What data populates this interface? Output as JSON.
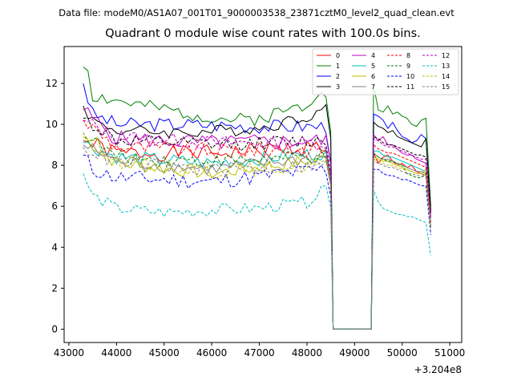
{
  "suptitle": "Data file: modeM0/AS1A07_001T01_9000003538_23871cztM0_level2_quad_clean.evt",
  "chart_data": {
    "type": "line",
    "title": "Quadrant 0 module wise count rates with 100.0s bins.",
    "xlabel": "",
    "ylabel": "",
    "x_offset_label": "+3.204e8",
    "xlim": [
      42900,
      51250
    ],
    "ylim": [
      -0.65,
      13.8
    ],
    "xticks": [
      43000,
      44000,
      45000,
      46000,
      47000,
      48000,
      49000,
      50000,
      51000
    ],
    "yticks": [
      0,
      2,
      4,
      6,
      8,
      10,
      12
    ],
    "grid": false,
    "legend_position": "top-right",
    "x_start": 43300,
    "bin_width": 100,
    "gap_start_bin": 12,
    "note": "x values are x_start + i*bin_width (offset +3.204e8); data gap (rate 0) between 48500 and 49400",
    "series": [
      {
        "name": "0",
        "color": "#ff0000",
        "dash": "solid",
        "anchors": [
          [
            43300,
            9.2
          ],
          [
            44000,
            8.6
          ],
          [
            46000,
            8.6
          ],
          [
            48300,
            8.9
          ]
        ],
        "post": [
          8.6,
          8.1,
          8.4,
          8.5,
          8.2,
          8.0,
          8.1,
          7.9,
          8.0,
          7.7,
          7.6,
          7.5,
          5.0
        ],
        "amp": 0.4,
        "seed": 1
      },
      {
        "name": "1",
        "color": "#008000",
        "dash": "solid",
        "anchors": [
          [
            43300,
            12.8
          ],
          [
            43400,
            12.7
          ],
          [
            43500,
            11.4
          ],
          [
            44500,
            10.9
          ],
          [
            45000,
            10.7
          ],
          [
            46500,
            10.2
          ],
          [
            47000,
            10.3
          ],
          [
            48000,
            11.0
          ],
          [
            48300,
            11.9
          ],
          [
            48400,
            11.6
          ]
        ],
        "post": [
          11.9,
          10.7,
          10.6,
          10.9,
          10.5,
          10.6,
          10.4,
          10.3,
          10.0,
          9.9,
          10.2,
          10.3,
          6.0
        ],
        "amp": 0.35,
        "seed": 2
      },
      {
        "name": "2",
        "color": "#0000ff",
        "dash": "solid",
        "anchors": [
          [
            43300,
            12.0
          ],
          [
            43500,
            10.5
          ],
          [
            44000,
            10.0
          ],
          [
            45500,
            10.0
          ],
          [
            47000,
            9.9
          ],
          [
            48300,
            9.9
          ]
        ],
        "post": [
          10.5,
          10.4,
          10.2,
          9.8,
          10.1,
          9.7,
          9.4,
          9.3,
          9.1,
          9.2,
          9.5,
          9.3,
          5.7
        ],
        "amp": 0.35,
        "seed": 3
      },
      {
        "name": "3",
        "color": "#000000",
        "dash": "solid",
        "anchors": [
          [
            43300,
            10.9
          ],
          [
            43500,
            10.2
          ],
          [
            44000,
            9.7
          ],
          [
            45500,
            9.6
          ],
          [
            47000,
            9.8
          ],
          [
            48000,
            10.4
          ],
          [
            48300,
            10.7
          ]
        ],
        "post": [
          10.1,
          9.9,
          9.8,
          9.6,
          9.7,
          9.4,
          9.3,
          9.2,
          9.1,
          9.0,
          8.9,
          9.3,
          5.8
        ],
        "amp": 0.3,
        "seed": 4
      },
      {
        "name": "4",
        "color": "#bf00bf",
        "dash": "solid",
        "anchors": [
          [
            43300,
            10.7
          ],
          [
            44000,
            9.3
          ],
          [
            46000,
            9.1
          ],
          [
            48300,
            9.2
          ]
        ],
        "post": [
          9.5,
          9.2,
          9.4,
          9.0,
          9.0,
          8.8,
          8.6,
          8.5,
          8.5,
          8.3,
          8.2,
          8.1,
          5.5
        ],
        "amp": 0.4,
        "seed": 5
      },
      {
        "name": "5",
        "color": "#00bfbf",
        "dash": "solid",
        "anchors": [
          [
            43300,
            9.1
          ],
          [
            44000,
            8.4
          ],
          [
            46000,
            8.1
          ],
          [
            48300,
            8.6
          ]
        ],
        "post": [
          8.7,
          8.7,
          8.5,
          8.4,
          8.4,
          8.3,
          8.2,
          8.1,
          8.0,
          7.9,
          7.8,
          7.7,
          5.2
        ],
        "amp": 0.35,
        "seed": 6
      },
      {
        "name": "6",
        "color": "#bfbf00",
        "dash": "solid",
        "anchors": [
          [
            43300,
            9.4
          ],
          [
            44000,
            8.1
          ],
          [
            46000,
            7.6
          ],
          [
            48300,
            8.3
          ]
        ],
        "post": [
          8.4,
          8.3,
          8.2,
          8.2,
          8.1,
          8.0,
          7.9,
          7.8,
          7.7,
          7.6,
          7.6,
          7.8,
          5.0
        ],
        "amp": 0.35,
        "seed": 7
      },
      {
        "name": "7",
        "color": "#808080",
        "dash": "solid",
        "anchors": [
          [
            43300,
            9.0
          ],
          [
            44000,
            8.2
          ],
          [
            46000,
            7.8
          ],
          [
            48300,
            8.4
          ]
        ],
        "post": [
          8.6,
          8.4,
          8.3,
          8.3,
          8.2,
          8.1,
          8.0,
          7.9,
          7.8,
          7.7,
          7.7,
          7.6,
          5.0
        ],
        "amp": 0.35,
        "seed": 8
      },
      {
        "name": "8",
        "color": "#ff0000",
        "dash": "dashed",
        "anchors": [
          [
            43300,
            10.2
          ],
          [
            44000,
            8.9
          ],
          [
            46000,
            8.7
          ],
          [
            48300,
            8.8
          ]
        ],
        "post": [
          9.0,
          8.8,
          8.7,
          8.6,
          8.6,
          8.5,
          8.4,
          8.3,
          8.2,
          8.1,
          8.0,
          7.9,
          5.2
        ],
        "amp": 0.4,
        "seed": 9
      },
      {
        "name": "9",
        "color": "#008000",
        "dash": "dashed",
        "anchors": [
          [
            43300,
            9.6
          ],
          [
            44000,
            8.4
          ],
          [
            46000,
            8.2
          ],
          [
            48300,
            8.4
          ]
        ],
        "post": [
          8.6,
          8.4,
          8.3,
          8.2,
          8.2,
          8.1,
          8.0,
          7.6,
          7.5,
          7.4,
          7.4,
          7.6,
          5.0
        ],
        "amp": 0.35,
        "seed": 10
      },
      {
        "name": "10",
        "color": "#0000ff",
        "dash": "dashed",
        "anchors": [
          [
            43300,
            8.5
          ],
          [
            43500,
            7.8
          ],
          [
            44000,
            7.4
          ],
          [
            46000,
            7.2
          ],
          [
            48300,
            7.8
          ]
        ],
        "post": [
          7.8,
          7.8,
          7.6,
          7.5,
          7.5,
          7.4,
          7.3,
          7.3,
          7.2,
          7.1,
          7.0,
          7.0,
          4.6
        ],
        "amp": 0.4,
        "seed": 11
      },
      {
        "name": "11",
        "color": "#000000",
        "dash": "dashed",
        "anchors": [
          [
            43300,
            10.3
          ],
          [
            44000,
            9.2
          ],
          [
            46000,
            9.0
          ],
          [
            48300,
            9.2
          ]
        ],
        "post": [
          9.4,
          9.3,
          9.1,
          9.0,
          9.0,
          8.9,
          8.8,
          8.7,
          8.6,
          8.5,
          8.5,
          8.4,
          5.6
        ],
        "amp": 0.35,
        "seed": 12
      },
      {
        "name": "12",
        "color": "#bf00bf",
        "dash": "dashed",
        "anchors": [
          [
            43300,
            10.2
          ],
          [
            44000,
            9.4
          ],
          [
            46000,
            9.1
          ],
          [
            48300,
            9.1
          ]
        ],
        "post": [
          9.3,
          9.2,
          9.0,
          8.9,
          8.9,
          8.8,
          8.7,
          8.6,
          8.5,
          8.4,
          8.3,
          8.3,
          5.4
        ],
        "amp": 0.35,
        "seed": 13
      },
      {
        "name": "13",
        "color": "#00bfbf",
        "dash": "dashed",
        "anchors": [
          [
            43300,
            7.6
          ],
          [
            43500,
            6.5
          ],
          [
            44000,
            5.9
          ],
          [
            45000,
            5.7
          ],
          [
            46000,
            5.8
          ],
          [
            47000,
            5.9
          ],
          [
            48000,
            6.2
          ],
          [
            48300,
            6.7
          ]
        ],
        "post": [
          6.8,
          6.2,
          5.9,
          5.8,
          5.7,
          5.6,
          5.6,
          5.5,
          5.5,
          5.4,
          5.3,
          5.2,
          3.6
        ],
        "amp": 0.3,
        "seed": 14
      },
      {
        "name": "14",
        "color": "#bfbf00",
        "dash": "dashed",
        "anchors": [
          [
            43300,
            9.6
          ],
          [
            44000,
            8.2
          ],
          [
            46000,
            7.7
          ],
          [
            48300,
            8.0
          ]
        ],
        "post": [
          8.3,
          8.2,
          8.1,
          8.0,
          8.0,
          7.9,
          7.8,
          7.8,
          7.7,
          7.6,
          7.6,
          7.5,
          5.0
        ],
        "amp": 0.35,
        "seed": 15
      },
      {
        "name": "15",
        "color": "#808080",
        "dash": "dashed",
        "anchors": [
          [
            43300,
            8.9
          ],
          [
            44000,
            8.1
          ],
          [
            46000,
            7.8
          ],
          [
            48300,
            8.0
          ]
        ],
        "post": [
          8.2,
          8.1,
          8.0,
          7.9,
          7.9,
          7.8,
          7.7,
          7.6,
          7.6,
          7.5,
          7.5,
          7.4,
          4.8
        ],
        "amp": 0.35,
        "seed": 16
      }
    ]
  }
}
